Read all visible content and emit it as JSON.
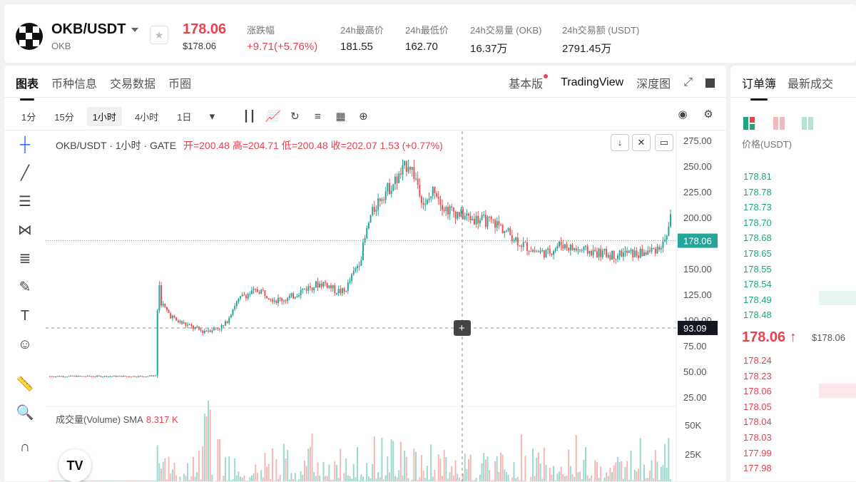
{
  "header": {
    "pair": "OKB/USDT",
    "pair_sub": "OKB",
    "price": "178.06",
    "price_sub": "$178.06",
    "stats": [
      {
        "label": "涨跌幅",
        "value": "+9.71(+5.76%)"
      },
      {
        "label": "24h最高价",
        "value": "181.55"
      },
      {
        "label": "24h最低价",
        "value": "162.70"
      },
      {
        "label": "24h交易量 (OKB)",
        "value": "16.37万"
      },
      {
        "label": "24h交易额 (USDT)",
        "value": "2791.45万"
      }
    ]
  },
  "chart_tabs": {
    "left": [
      "图表",
      "币种信息",
      "交易数据",
      "币圈"
    ],
    "right": [
      "基本版",
      "TradingView",
      "深度图"
    ]
  },
  "toolbar": {
    "intervals": [
      "1分",
      "15分",
      "1小时",
      "4小时",
      "1日"
    ],
    "selected": "1小时"
  },
  "legend": {
    "symbol": "OKB/USDT · 1小时 · GATE",
    "ohlc": "开=200.48  高=204.71  低=200.48  收=202.07  1.53 (+0.77%)"
  },
  "volume_legend": {
    "label": "成交量(Volume) SMA",
    "value": "8.317 K"
  },
  "price_axis": [
    "275.00",
    "250.00",
    "225.00",
    "200.00",
    "150.00",
    "125.00",
    "100.00",
    "75.00",
    "50.00",
    "25.00"
  ],
  "volume_axis": [
    "50K",
    "25K"
  ],
  "current_price_tag": "178.06",
  "crosshair_tag": "93.09",
  "colors": {
    "up": "#26a69a",
    "down": "#ef5350",
    "red": "#e8414f",
    "green": "#1fa67a"
  },
  "chart_data": {
    "type": "candlestick",
    "title": "OKB/USDT · 1小时 · GATE",
    "ylim": [
      25,
      275
    ],
    "close_path": [
      [
        0,
        46
      ],
      [
        0.02,
        46
      ],
      [
        0.3,
        46
      ],
      [
        0.33,
        47
      ],
      [
        0.335,
        167
      ],
      [
        0.34,
        120
      ],
      [
        0.36,
        110
      ],
      [
        0.39,
        100
      ],
      [
        0.43,
        95
      ],
      [
        0.47,
        90
      ],
      [
        0.5,
        92
      ],
      [
        0.54,
        95
      ],
      [
        0.57,
        115
      ],
      [
        0.6,
        125
      ],
      [
        0.65,
        130
      ],
      [
        0.7,
        120
      ],
      [
        0.74,
        122
      ],
      [
        0.78,
        130
      ],
      [
        0.82,
        135
      ],
      [
        0.85,
        137
      ],
      [
        0.88,
        130
      ],
      [
        0.91,
        128
      ],
      [
        0.93,
        140
      ],
      [
        0.96,
        160
      ],
      [
        0.99,
        200
      ],
      [
        1.02,
        220
      ],
      [
        1.05,
        230
      ],
      [
        1.08,
        240
      ],
      [
        1.11,
        255
      ],
      [
        1.14,
        232
      ],
      [
        1.16,
        210
      ],
      [
        1.19,
        230
      ],
      [
        1.22,
        210
      ],
      [
        1.26,
        205
      ],
      [
        1.3,
        200
      ],
      [
        1.34,
        198
      ],
      [
        1.38,
        195
      ],
      [
        1.42,
        185
      ],
      [
        1.46,
        175
      ],
      [
        1.5,
        168
      ],
      [
        1.54,
        166
      ],
      [
        1.58,
        175
      ],
      [
        1.62,
        170
      ],
      [
        1.66,
        168
      ],
      [
        1.7,
        166
      ],
      [
        1.74,
        164
      ],
      [
        1.78,
        166
      ],
      [
        1.82,
        165
      ],
      [
        1.86,
        168
      ],
      [
        1.9,
        175
      ],
      [
        1.92,
        200
      ]
    ]
  },
  "book": {
    "tabs": [
      "订单簿",
      "最新成交"
    ],
    "price_head": "价格(USDT)",
    "asks": [
      "178.81",
      "178.78",
      "178.73",
      "178.70",
      "178.68",
      "178.65",
      "178.55",
      "178.54",
      "178.49",
      "178.48"
    ],
    "mid": "178.06",
    "mid_sub": "$178.06",
    "bids": [
      "178.24",
      "178.23",
      "178.06",
      "178.05",
      "178.04",
      "178.03",
      "177.99",
      "177.98"
    ]
  }
}
